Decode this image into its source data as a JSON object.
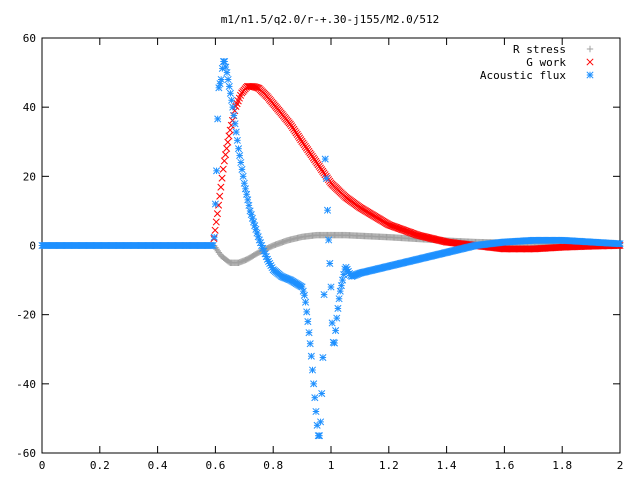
{
  "chart_data": {
    "type": "scatter",
    "title": "m1/n1.5/q2.0/r-+.30-j155/M2.0/512",
    "xlabel": "",
    "ylabel": "",
    "xlim": [
      0,
      2
    ],
    "ylim": [
      -60,
      60
    ],
    "xticks": [
      0,
      0.2,
      0.4,
      0.6,
      0.8,
      1,
      1.2,
      1.4,
      1.6,
      1.8,
      2
    ],
    "xtick_labels": [
      "0",
      "0.2",
      "0.4",
      "0.6",
      "0.8",
      "1",
      "1.2",
      "1.4",
      "1.6",
      "1.8",
      "2"
    ],
    "yticks": [
      -60,
      -40,
      -20,
      0,
      20,
      40,
      60
    ],
    "ytick_labels": [
      "-60",
      "-40",
      "-20",
      "0",
      "20",
      "40",
      "60"
    ],
    "grid": false,
    "legend_position": "top-right",
    "series": [
      {
        "name": "R stress",
        "marker": "plus",
        "color": "#a0a0a0",
        "x": [
          0,
          0.595,
          0.62,
          0.65,
          0.68,
          0.71,
          0.75,
          0.8,
          0.85,
          0.9,
          0.95,
          1.0,
          1.05,
          1.1,
          1.2,
          1.3,
          1.4,
          1.5,
          1.6,
          1.7,
          1.8,
          1.9,
          2.0
        ],
        "y": [
          0,
          0,
          -3,
          -5,
          -5,
          -4,
          -2,
          0,
          1.5,
          2.5,
          3,
          3,
          3,
          2.8,
          2.4,
          1.9,
          1.4,
          1.0,
          0.8,
          0.6,
          0.4,
          0.2,
          0
        ]
      },
      {
        "name": "G work",
        "marker": "x",
        "color": "#ff0000",
        "x": [
          0.595,
          0.61,
          0.63,
          0.65,
          0.67,
          0.69,
          0.71,
          0.73,
          0.75,
          0.78,
          0.82,
          0.86,
          0.9,
          0.95,
          1.0,
          1.05,
          1.1,
          1.2,
          1.3,
          1.4,
          1.5,
          1.6,
          1.7,
          1.8,
          1.9,
          2.0
        ],
        "y": [
          2,
          11,
          24,
          33,
          40,
          44,
          46,
          46,
          45.5,
          43,
          39,
          35,
          30,
          24,
          18,
          14,
          11,
          6,
          3,
          1,
          0,
          -1,
          -1,
          -0.5,
          -0.2,
          0
        ]
      },
      {
        "name": "Acoustic flux",
        "marker": "star",
        "color": "#1e90ff",
        "x": [
          0,
          0.595,
          0.605,
          0.61,
          0.62,
          0.625,
          0.63,
          0.64,
          0.66,
          0.68,
          0.7,
          0.72,
          0.75,
          0.78,
          0.8,
          0.83,
          0.86,
          0.88,
          0.9,
          0.91,
          0.92,
          0.93,
          0.94,
          0.95,
          0.955,
          0.96,
          0.965,
          0.97,
          0.975,
          0.98,
          0.985,
          0.99,
          1.0,
          1.005,
          1.01,
          1.02,
          1.03,
          1.04,
          1.05,
          1.07,
          1.1,
          1.15,
          1.2,
          1.3,
          1.4,
          1.5,
          1.6,
          1.7,
          1.8,
          1.9,
          2.0
        ],
        "y": [
          0,
          0,
          24,
          45,
          48,
          52,
          54,
          50,
          40,
          28,
          18,
          10,
          2,
          -4,
          -7,
          -9,
          -10,
          -11,
          -12,
          -15,
          -22,
          -30,
          -40,
          -50,
          -55,
          -55,
          -50,
          -38,
          -24,
          25,
          18,
          5,
          -12,
          -25,
          -30,
          -21,
          -14,
          -10,
          -6,
          -9,
          -8,
          -7,
          -6,
          -4,
          -2,
          0,
          1,
          1.5,
          1.5,
          1,
          0.5
        ]
      }
    ]
  }
}
